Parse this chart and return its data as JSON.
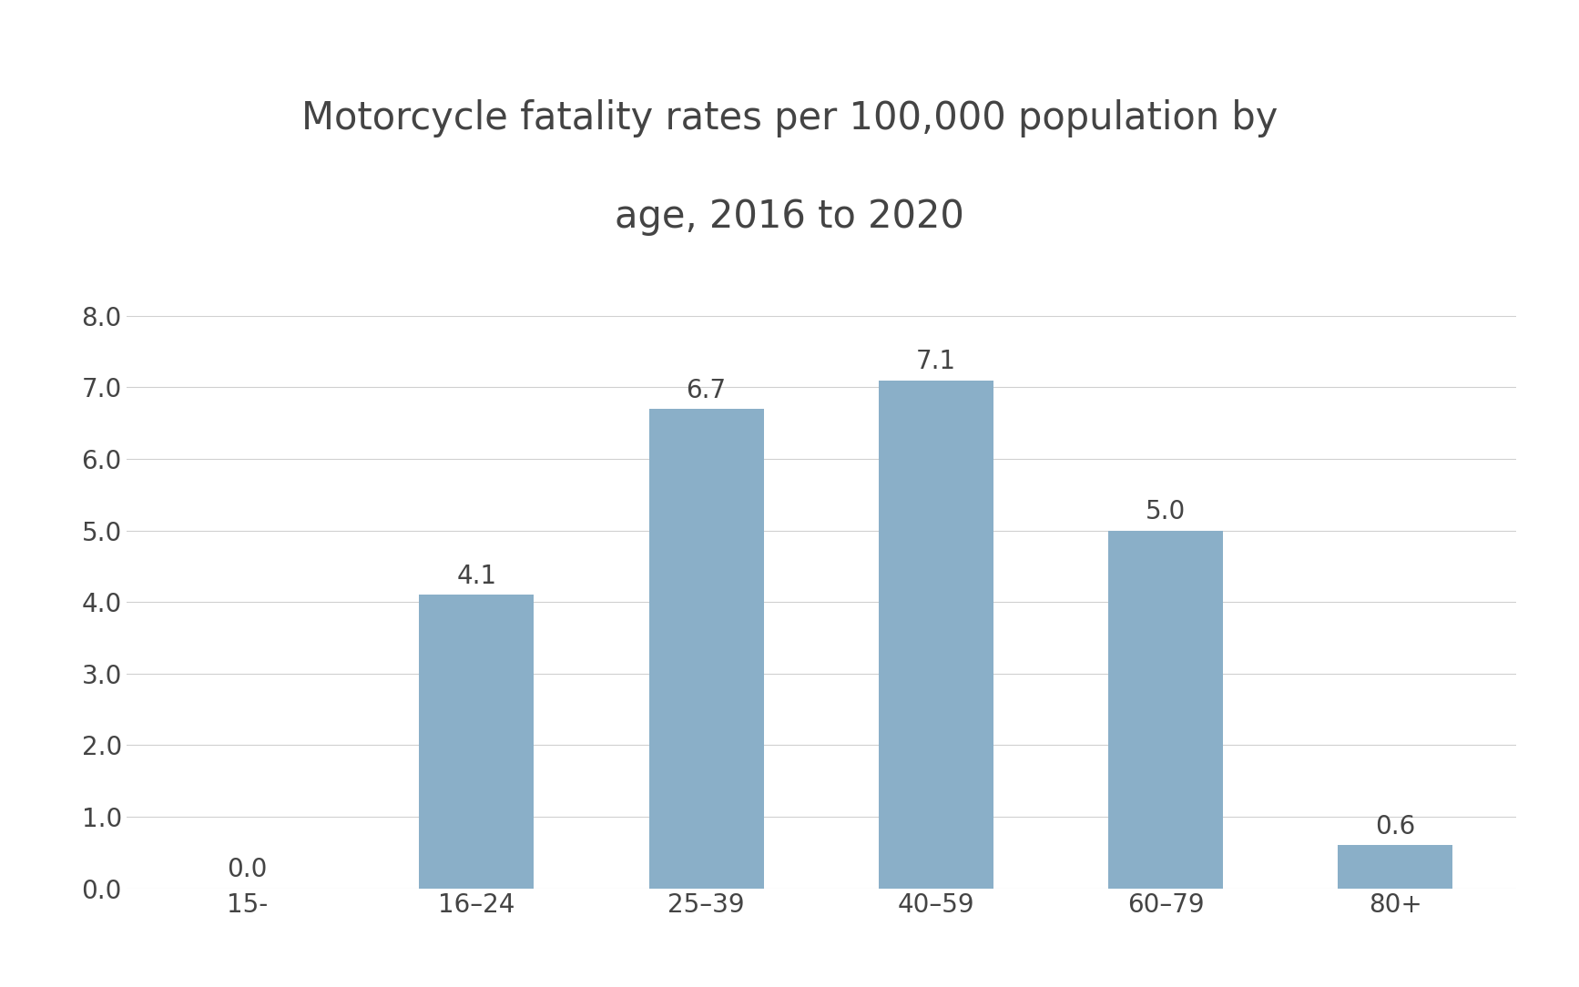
{
  "title_line1": "Motorcycle fatality rates per 100,000 population by",
  "title_line2": "age, 2016 to 2020",
  "categories": [
    "15-",
    "16–24",
    "25–39",
    "40–59",
    "60–79",
    "80+"
  ],
  "values": [
    0.0,
    4.1,
    6.7,
    7.1,
    5.0,
    0.6
  ],
  "bar_color": "#8aafc8",
  "background_color": "#ffffff",
  "ylim": [
    0.0,
    8.0
  ],
  "yticks": [
    0.0,
    1.0,
    2.0,
    3.0,
    4.0,
    5.0,
    6.0,
    7.0,
    8.0
  ],
  "title_fontsize": 30,
  "tick_fontsize": 20,
  "label_fontsize": 20,
  "grid_color": "#d0d0d0",
  "bar_width": 0.5
}
